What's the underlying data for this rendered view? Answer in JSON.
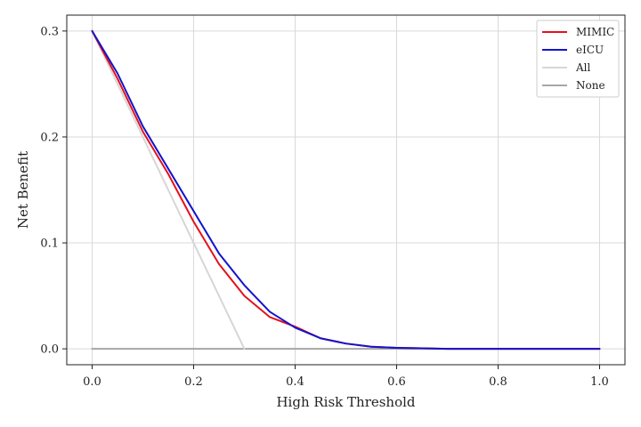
{
  "chart_data": {
    "type": "line",
    "title": "",
    "xlabel": "High Risk Threshold",
    "ylabel": "Net Benefit",
    "xlim": [
      -0.05,
      1.05
    ],
    "ylim": [
      -0.015,
      0.315
    ],
    "x_ticks": [
      0.0,
      0.2,
      0.4,
      0.6,
      0.8,
      1.0
    ],
    "x_tick_labels": [
      "0.0",
      "0.2",
      "0.4",
      "0.6",
      "0.8",
      "1.0"
    ],
    "y_ticks": [
      0.0,
      0.1,
      0.2,
      0.3
    ],
    "y_tick_labels": [
      "0.0",
      "0.1",
      "0.2",
      "0.3"
    ],
    "grid": true,
    "legend_position": "top-right",
    "series": [
      {
        "name": "MIMIC",
        "color": "#e3121b",
        "x": [
          0.0,
          0.05,
          0.1,
          0.15,
          0.2,
          0.25,
          0.3,
          0.35,
          0.4,
          0.45,
          0.5,
          0.55,
          0.6,
          0.65,
          0.7,
          0.75,
          0.8,
          0.85,
          0.9,
          0.95,
          1.0
        ],
        "y": [
          0.3,
          0.255,
          0.205,
          0.165,
          0.12,
          0.08,
          0.05,
          0.03,
          0.021,
          0.01,
          0.005,
          0.002,
          0.001,
          0.0005,
          0.0,
          0.0,
          0.0,
          0.0,
          0.0,
          0.0,
          0.0
        ]
      },
      {
        "name": "eICU",
        "color": "#1414cc",
        "x": [
          0.0,
          0.05,
          0.1,
          0.15,
          0.2,
          0.25,
          0.3,
          0.35,
          0.4,
          0.45,
          0.5,
          0.55,
          0.6,
          0.65,
          0.7,
          0.75,
          0.8,
          0.85,
          0.9,
          0.95,
          1.0
        ],
        "y": [
          0.3,
          0.26,
          0.21,
          0.17,
          0.13,
          0.09,
          0.06,
          0.035,
          0.02,
          0.01,
          0.005,
          0.002,
          0.001,
          0.0005,
          0.0,
          0.0,
          0.0,
          0.0,
          0.0,
          0.0,
          0.0
        ]
      },
      {
        "name": "All",
        "color": "#d6d6d6",
        "x": [
          0.0,
          0.3
        ],
        "y": [
          0.3,
          0.0
        ]
      },
      {
        "name": "None",
        "color": "#a6a6a6",
        "x": [
          0.0,
          1.0
        ],
        "y": [
          0.0,
          0.0
        ]
      }
    ]
  }
}
